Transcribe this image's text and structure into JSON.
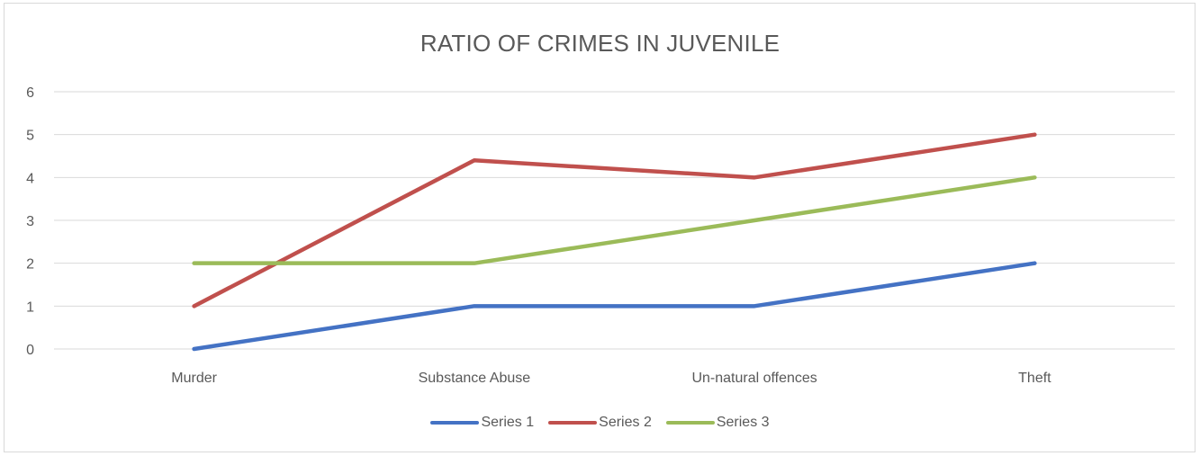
{
  "chart_data": {
    "type": "line",
    "title": "RATIO OF CRIMES IN JUVENILE",
    "xlabel": "",
    "ylabel": "",
    "categories": [
      "Murder",
      "Substance Abuse",
      "Un-natural offences",
      "Theft"
    ],
    "ylim": [
      0,
      6
    ],
    "yticks": [
      "0",
      "1",
      "2",
      "3",
      "4",
      "5",
      "6"
    ],
    "grid": true,
    "legend_position": "bottom",
    "series": [
      {
        "name": "Series 1",
        "color": "#4472C4",
        "values": [
          0,
          1,
          1,
          2
        ]
      },
      {
        "name": "Series 2",
        "color": "#C0504D",
        "values": [
          1,
          4.4,
          4,
          5
        ]
      },
      {
        "name": "Series 3",
        "color": "#9BBB59",
        "values": [
          2,
          2,
          3,
          4
        ]
      }
    ]
  }
}
